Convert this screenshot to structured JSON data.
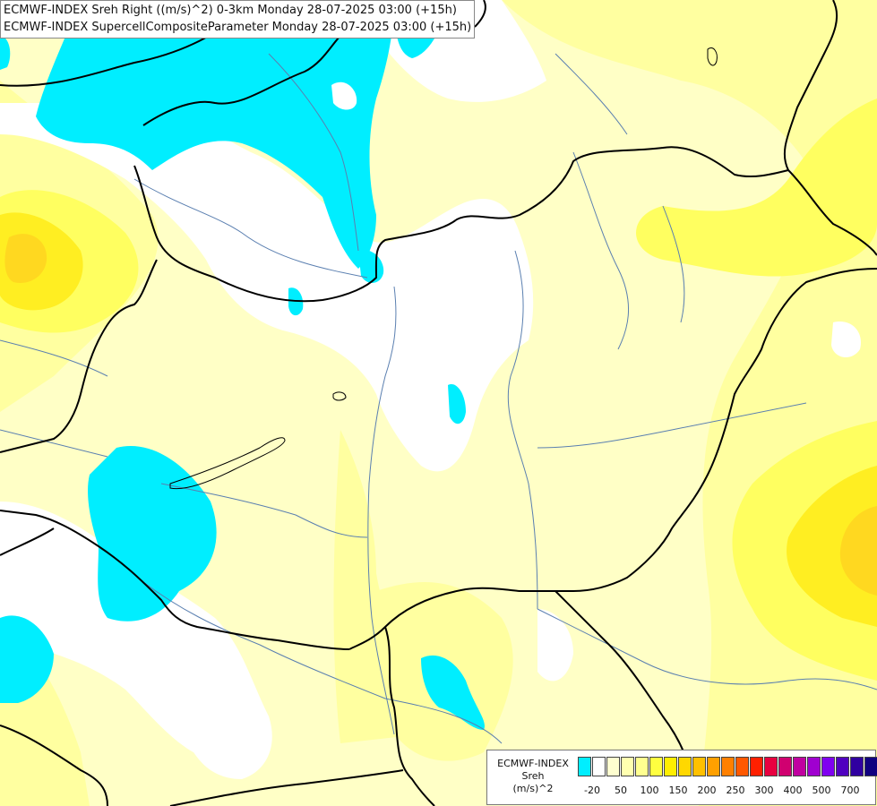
{
  "title": {
    "line1": "ECMWF-INDEX Sreh Right ((m/s)^2) 0-3km Monday 28-07-2025 03:00 (+15h)",
    "line2": "ECMWF-INDEX SupercellCompositeParameter Monday 28-07-2025 03:00 (+15h)"
  },
  "legend": {
    "line1": "ECMWF-INDEX",
    "line2": "Sreh",
    "line3": "(m/s)^2",
    "colors": [
      "#00eeff",
      "#ffffff",
      "#ffffd0",
      "#ffffb0",
      "#ffff90",
      "#ffff40",
      "#ffee00",
      "#ffd800",
      "#ffc000",
      "#ffa000",
      "#ff8000",
      "#ff5800",
      "#ff2000",
      "#e80040",
      "#d00070",
      "#c000a0",
      "#a000d0",
      "#8000f0",
      "#5000c0",
      "#3000a0",
      "#100080"
    ],
    "tick_labels": [
      "-20",
      "50",
      "100",
      "150",
      "200",
      "250",
      "300",
      "400",
      "500",
      "700"
    ]
  },
  "map_colors": {
    "cyan": "#00eeff",
    "white": "#ffffff",
    "pale_yellow": "#ffffc6",
    "light_yellow": "#ffffa0",
    "yellow": "#ffff60",
    "bright_yellow": "#ffee22",
    "gold": "#ffd820",
    "border": "#000000",
    "river": "#5a7fb0"
  }
}
